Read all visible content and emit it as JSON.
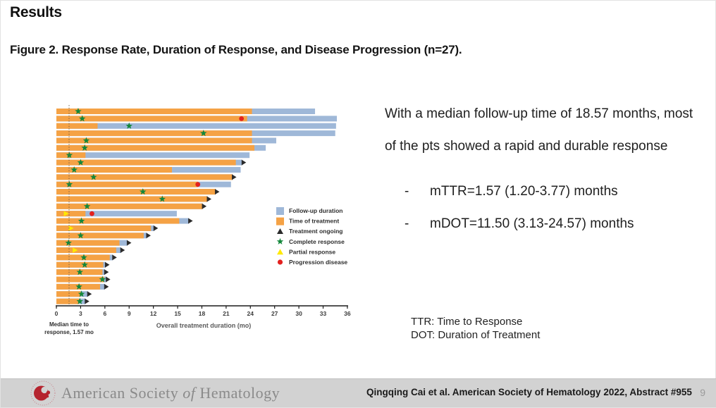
{
  "slide": {
    "title": "Results",
    "figure_caption": "Figure 2. Response Rate, Duration of Response, and Disease Progression (n=27)."
  },
  "right_panel": {
    "paragraph": "With a median follow-up time of 18.57 months, most of the pts showed a rapid and durable response",
    "bullet_marker": "-",
    "bullets": [
      "mTTR=1.57 (1.20-3.77) months",
      "mDOT=11.50 (3.13-24.57) months"
    ],
    "notes": [
      "TTR: Time to Response",
      "DOT: Duration of Treatment"
    ]
  },
  "footer": {
    "logo_text_pre": "American Society ",
    "logo_text_italic": "of",
    "logo_text_post": " Hematology",
    "citation": "Qingqing Cai et al. American Society of Hematology 2022, Abstract #955",
    "page_number": "9"
  },
  "chart_data": {
    "type": "bar",
    "subtype": "swimmer-plot",
    "title": "",
    "xlabel": "Overall treatment duration (mo)",
    "ylabel": "",
    "xlim": [
      0,
      36
    ],
    "xticks": [
      0,
      3,
      6,
      9,
      12,
      15,
      18,
      21,
      24,
      27,
      30,
      33,
      36
    ],
    "grid": false,
    "legend_position": "inside-right",
    "median_line": {
      "value": 1.57,
      "label_line1": "Median time to",
      "label_line2": "response, 1.57 mo"
    },
    "colors": {
      "followup": "#9FB8D8",
      "treatment": "#F5A245",
      "complete": "#13873B",
      "partial": "#FFE900",
      "progression": "#E3211F",
      "ongoing": "#2B2B2B"
    },
    "legend": [
      {
        "key": "followup",
        "shape": "square",
        "label": "Follow-up duration"
      },
      {
        "key": "treatment",
        "shape": "square",
        "label": "Time of treatment"
      },
      {
        "key": "ongoing",
        "shape": "triangle-up",
        "label": "Treatment ongoing"
      },
      {
        "key": "complete",
        "shape": "star",
        "label": "Complete response"
      },
      {
        "key": "partial",
        "shape": "triangle-up",
        "label": "Partial response"
      },
      {
        "key": "progression",
        "shape": "circle",
        "label": "Progression disease"
      }
    ],
    "units": "months",
    "patients": [
      {
        "t": 24.2,
        "f": 32.0,
        "cr": 2.7
      },
      {
        "t": 23.6,
        "f": 34.7,
        "cr": 3.2,
        "pd": 22.9
      },
      {
        "t": 5.1,
        "f": 34.6,
        "cr": 9.0
      },
      {
        "t": 24.2,
        "f": 34.5,
        "cr": 18.2
      },
      {
        "t": 24.2,
        "f": 27.2,
        "cr": 3.7
      },
      {
        "t": 24.5,
        "f": 25.9,
        "cr": 3.5
      },
      {
        "t": 3.6,
        "f": 23.9,
        "cr": 1.6
      },
      {
        "t": 22.2,
        "f": 23.0,
        "cr": 3.0,
        "ongoing": true
      },
      {
        "t": 14.3,
        "f": 22.8,
        "cr": 2.2
      },
      {
        "t": 21.8,
        "f": 21.8,
        "cr": 4.6,
        "ongoing": true
      },
      {
        "t": 17.5,
        "f": 21.6,
        "cr": 1.6,
        "pd": 17.5
      },
      {
        "t": 19.7,
        "f": 19.7,
        "cr": 10.7,
        "ongoing": true
      },
      {
        "t": 18.7,
        "f": 18.7,
        "cr": 13.1,
        "ongoing": true
      },
      {
        "t": 18.1,
        "f": 18.1,
        "cr": 3.8,
        "ongoing": true
      },
      {
        "t": 3.6,
        "f": 14.9,
        "pr": 1.2,
        "pd": 4.4
      },
      {
        "t": 15.2,
        "f": 16.4,
        "cr": 3.1,
        "ongoing": true
      },
      {
        "t": 11.7,
        "f": 12.1,
        "pr": 1.8,
        "ongoing": true
      },
      {
        "t": 10.8,
        "f": 11.2,
        "cr": 3.0,
        "ongoing": true
      },
      {
        "t": 7.8,
        "f": 8.8,
        "cr": 1.5,
        "ongoing": true
      },
      {
        "t": 7.4,
        "f": 8.0,
        "pr": 2.3,
        "ongoing": true
      },
      {
        "t": 6.6,
        "f": 7.0,
        "cr": 3.4,
        "ongoing": true
      },
      {
        "t": 5.8,
        "f": 6.1,
        "cr": 3.5,
        "ongoing": true
      },
      {
        "t": 5.7,
        "f": 6.0,
        "cr": 2.9,
        "ongoing": true
      },
      {
        "t": 5.9,
        "f": 6.2,
        "cr": 5.7,
        "ongoing": true
      },
      {
        "t": 5.4,
        "f": 6.0,
        "cr": 2.8,
        "ongoing": true
      },
      {
        "t": 3.0,
        "f": 3.9,
        "cr": 3.1,
        "ongoing": true
      },
      {
        "t": 2.8,
        "f": 3.6,
        "cr": 2.9,
        "ongoing": true
      }
    ]
  }
}
